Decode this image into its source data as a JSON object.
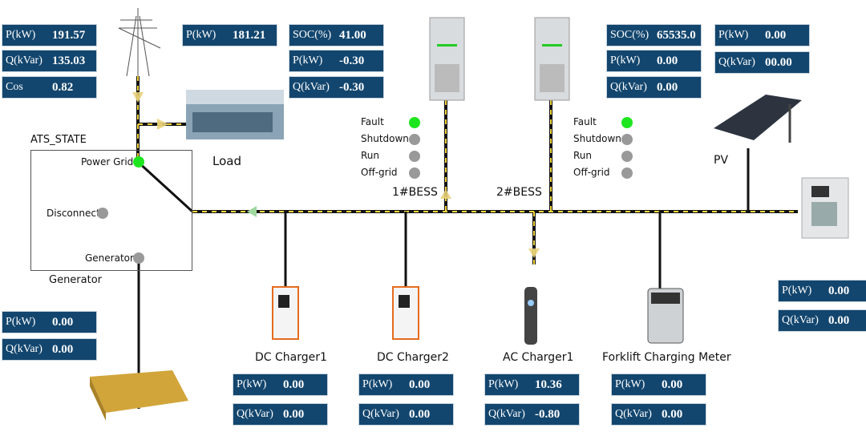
{
  "grid": {
    "rows": [
      {
        "k": "P(kW)",
        "v": "191.57"
      },
      {
        "k": "Q(kVar)",
        "v": "135.03"
      },
      {
        "k": "Cos",
        "v": "0.82"
      }
    ]
  },
  "load": {
    "label": "Load",
    "rows": [
      {
        "k": "P(kW)",
        "v": "181.21"
      }
    ]
  },
  "bess1": {
    "label": "1#BESS",
    "rows": [
      {
        "k": "SOC(%)",
        "v": "41.00"
      },
      {
        "k": "P(kW)",
        "v": "-0.30"
      },
      {
        "k": "Q(kVar)",
        "v": "-0.30"
      }
    ],
    "status": [
      {
        "label": "Fault",
        "on": true
      },
      {
        "label": "Shutdown",
        "on": false
      },
      {
        "label": "Run",
        "on": false
      },
      {
        "label": "Off-grid",
        "on": false
      }
    ]
  },
  "bess2": {
    "label": "2#BESS",
    "rows": [
      {
        "k": "SOC(%)",
        "v": "65535.0"
      },
      {
        "k": "P(kW)",
        "v": "0.00"
      },
      {
        "k": "Q(kVar)",
        "v": "0.00"
      }
    ],
    "status": [
      {
        "label": "Fault",
        "on": true
      },
      {
        "label": "Shutdown",
        "on": false
      },
      {
        "label": "Run",
        "on": false
      },
      {
        "label": "Off-grid",
        "on": false
      }
    ]
  },
  "pv": {
    "label": "PV",
    "rows": [
      {
        "k": "P(kW)",
        "v": "0.00"
      },
      {
        "k": "Q(kVar)",
        "v": "00.00"
      }
    ]
  },
  "meter": {
    "rows": [
      {
        "k": "P(kW)",
        "v": "0.00"
      },
      {
        "k": "Q(kVar)",
        "v": "0.00"
      }
    ]
  },
  "generator": {
    "label": "Generator",
    "rows": [
      {
        "k": "P(kW)",
        "v": "0.00"
      },
      {
        "k": "Q(kVar)",
        "v": "0.00"
      }
    ]
  },
  "ats": {
    "title": "ATS_STATE",
    "power_grid": "Power Grid",
    "disconnect": "Disconnect",
    "generator": "Generator",
    "power_grid_on": true,
    "disconnect_on": false,
    "generator_on": false
  },
  "dc1": {
    "label": "DC Charger1",
    "rows": [
      {
        "k": "P(kW)",
        "v": "0.00"
      },
      {
        "k": "Q(kVar)",
        "v": "0.00"
      }
    ]
  },
  "dc2": {
    "label": "DC Charger2",
    "rows": [
      {
        "k": "P(kW)",
        "v": "0.00"
      },
      {
        "k": "Q(kVar)",
        "v": "0.00"
      }
    ]
  },
  "ac1": {
    "label": "AC Charger1",
    "rows": [
      {
        "k": "P(kW)",
        "v": "10.36"
      },
      {
        "k": "Q(kVar)",
        "v": "-0.80"
      }
    ]
  },
  "forklift": {
    "label": "Forklift Charging Meter",
    "rows": [
      {
        "k": "P(kW)",
        "v": "0.00"
      },
      {
        "k": "Q(kVar)",
        "v": "0.00"
      }
    ]
  },
  "colors": {
    "panel": "#13466e",
    "bus_dash": "#f2d53c",
    "active": "#1ee61e",
    "inactive": "#999999"
  }
}
